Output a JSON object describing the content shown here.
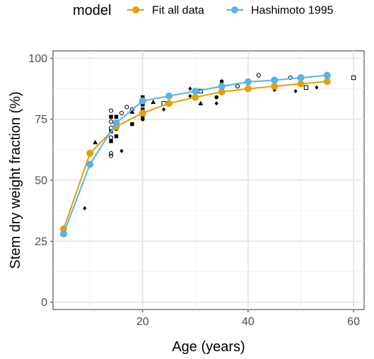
{
  "chart_data": {
    "type": "line",
    "title": "",
    "xlabel": "Age (years)",
    "ylabel": "Stem dry weight fraction (%)",
    "xlim": [
      3,
      62
    ],
    "ylim": [
      -3,
      103
    ],
    "x_ticks": [
      20,
      40,
      60
    ],
    "y_ticks": [
      0,
      25,
      50,
      75,
      100
    ],
    "grid": true,
    "legend": {
      "position": "top",
      "title": "model",
      "entries": [
        {
          "name": "Fit all data",
          "color": "#E69F00"
        },
        {
          "name": "Hashimoto 1995",
          "color": "#56B4E9"
        }
      ]
    },
    "series": [
      {
        "name": "Fit all data",
        "color": "#E69F00",
        "x": [
          5,
          10,
          15,
          20,
          25,
          30,
          35,
          40,
          45,
          50,
          55
        ],
        "y": [
          30,
          61,
          72,
          77.5,
          81.5,
          84,
          86.2,
          87.5,
          88.5,
          89.5,
          90.5
        ]
      },
      {
        "name": "Hashimoto 1995",
        "color": "#56B4E9",
        "x": [
          5,
          10,
          15,
          20,
          25,
          30,
          35,
          40,
          45,
          50,
          55
        ],
        "y": [
          28,
          56.5,
          73.5,
          82.5,
          84.5,
          86.5,
          88.5,
          90.3,
          91,
          92,
          93
        ]
      }
    ],
    "observations": [
      {
        "marker": "diamond",
        "x": 9,
        "y": 38.5
      },
      {
        "marker": "triangle",
        "x": 11,
        "y": 65.5
      },
      {
        "marker": "open-circle",
        "x": 14,
        "y": 78.5
      },
      {
        "marker": "open-circle",
        "x": 14,
        "y": 74
      },
      {
        "marker": "open-circle",
        "x": 14,
        "y": 71.5
      },
      {
        "marker": "open-circle",
        "x": 14,
        "y": 67.5
      },
      {
        "marker": "open-circle",
        "x": 14,
        "y": 61
      },
      {
        "marker": "open-circle",
        "x": 14,
        "y": 60
      },
      {
        "marker": "square",
        "x": 14,
        "y": 76
      },
      {
        "marker": "square",
        "x": 14,
        "y": 70
      },
      {
        "marker": "square",
        "x": 14,
        "y": 66
      },
      {
        "marker": "square",
        "x": 15,
        "y": 76
      },
      {
        "marker": "square",
        "x": 15,
        "y": 68
      },
      {
        "marker": "filled-circle",
        "x": 15,
        "y": 71
      },
      {
        "marker": "triangle",
        "x": 15,
        "y": 74
      },
      {
        "marker": "diamond",
        "x": 16,
        "y": 62
      },
      {
        "marker": "open-circle",
        "x": 16,
        "y": 77.5
      },
      {
        "marker": "open-circle",
        "x": 17,
        "y": 80
      },
      {
        "marker": "square",
        "x": 18,
        "y": 73
      },
      {
        "marker": "triangle",
        "x": 18,
        "y": 78
      },
      {
        "marker": "open-circle",
        "x": 18,
        "y": 79
      },
      {
        "marker": "square",
        "x": 20,
        "y": 84
      },
      {
        "marker": "square",
        "x": 20,
        "y": 81
      },
      {
        "marker": "square",
        "x": 20,
        "y": 79
      },
      {
        "marker": "filled-circle",
        "x": 20,
        "y": 76
      },
      {
        "marker": "filled-circle",
        "x": 20,
        "y": 75
      },
      {
        "marker": "open-square",
        "x": 20,
        "y": 82
      },
      {
        "marker": "triangle",
        "x": 22,
        "y": 82
      },
      {
        "marker": "open-square",
        "x": 24,
        "y": 81.5
      },
      {
        "marker": "diamond",
        "x": 24,
        "y": 79
      },
      {
        "marker": "open-circle",
        "x": 25,
        "y": 84
      },
      {
        "marker": "diamond",
        "x": 29,
        "y": 84.5
      },
      {
        "marker": "diamond",
        "x": 29,
        "y": 87.5
      },
      {
        "marker": "open-square",
        "x": 31,
        "y": 86.5
      },
      {
        "marker": "triangle",
        "x": 31,
        "y": 81.5
      },
      {
        "marker": "filled-circle",
        "x": 34,
        "y": 84
      },
      {
        "marker": "diamond",
        "x": 34,
        "y": 81.5
      },
      {
        "marker": "filled-circle",
        "x": 35,
        "y": 90.5
      },
      {
        "marker": "square",
        "x": 35,
        "y": 89
      },
      {
        "marker": "open-circle",
        "x": 38,
        "y": 88.5
      },
      {
        "marker": "open-circle",
        "x": 42,
        "y": 93
      },
      {
        "marker": "diamond",
        "x": 45,
        "y": 87
      },
      {
        "marker": "open-circle",
        "x": 48,
        "y": 92
      },
      {
        "marker": "diamond",
        "x": 49,
        "y": 86.5
      },
      {
        "marker": "open-square",
        "x": 51,
        "y": 88
      },
      {
        "marker": "diamond",
        "x": 53,
        "y": 88
      },
      {
        "marker": "open-square",
        "x": 60,
        "y": 92
      }
    ]
  }
}
